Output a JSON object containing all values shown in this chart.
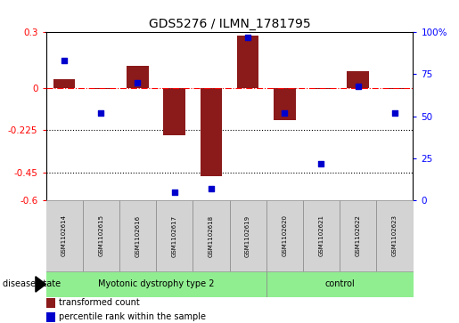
{
  "title": "GDS5276 / ILMN_1781795",
  "samples": [
    "GSM1102614",
    "GSM1102615",
    "GSM1102616",
    "GSM1102617",
    "GSM1102618",
    "GSM1102619",
    "GSM1102620",
    "GSM1102621",
    "GSM1102622",
    "GSM1102623"
  ],
  "transformed_count": [
    0.05,
    -0.005,
    0.12,
    -0.25,
    -0.47,
    0.28,
    -0.17,
    -0.005,
    0.09,
    -0.005
  ],
  "percentile_rank": [
    83,
    52,
    70,
    5,
    7,
    97,
    52,
    22,
    68,
    52
  ],
  "groups": [
    {
      "label": "Myotonic dystrophy type 2",
      "start": 0,
      "end": 6,
      "color": "#90EE90"
    },
    {
      "label": "control",
      "start": 6,
      "end": 10,
      "color": "#90EE90"
    }
  ],
  "ylim_left": [
    -0.6,
    0.3
  ],
  "ylim_right": [
    0,
    100
  ],
  "yticks_left": [
    0.3,
    0.0,
    -0.225,
    -0.45,
    -0.6
  ],
  "ytick_labels_left": [
    "0.3",
    "0",
    "-0.225",
    "-0.45",
    "-0.6"
  ],
  "yticks_right": [
    100,
    75,
    50,
    25,
    0
  ],
  "ytick_labels_right": [
    "100%",
    "75",
    "50",
    "25",
    "0"
  ],
  "hline_y": 0.0,
  "dotted_lines": [
    -0.225,
    -0.45
  ],
  "bar_color": "#8B1A1A",
  "scatter_color": "#0000CD",
  "bar_width": 0.6,
  "background_color": "#ffffff",
  "legend_labels": [
    "transformed count",
    "percentile rank within the sample"
  ],
  "legend_colors": [
    "#8B1A1A",
    "#0000CD"
  ],
  "disease_state_label": "disease state",
  "gray_box_color": "#d3d3d3",
  "green_box_color": "#90EE90"
}
